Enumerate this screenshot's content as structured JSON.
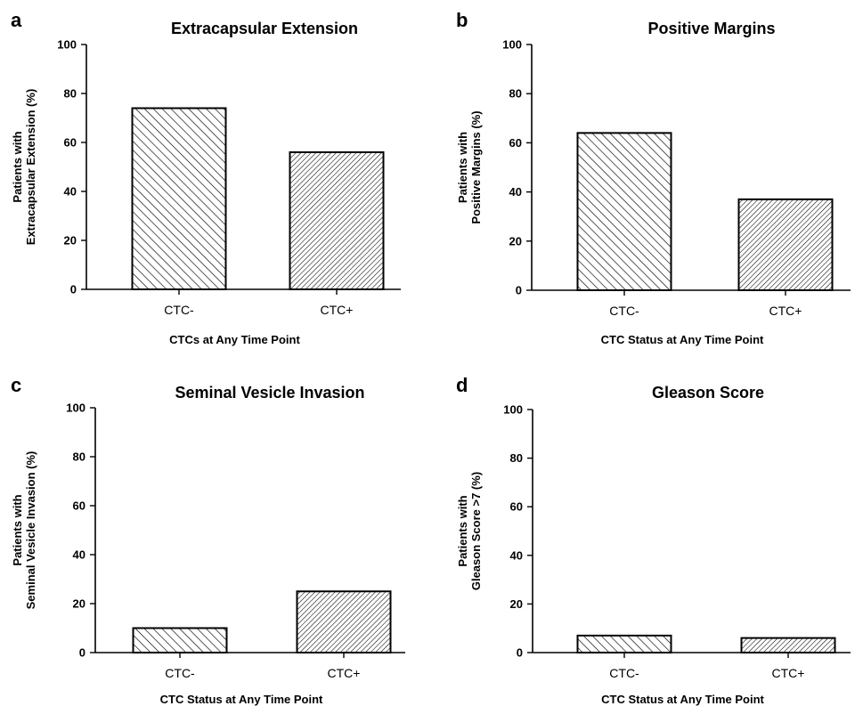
{
  "chart_data": [
    {
      "type": "bar",
      "panel": "a",
      "title": "Extracapsular Extension",
      "categories": [
        "CTC-",
        "CTC+"
      ],
      "values": [
        74,
        56
      ],
      "patterns": [
        "hatch-wide",
        "hatch-dense"
      ],
      "xlabel": "CTCs at Any Time Point",
      "ylabel": [
        "Patients with",
        "Extracapsular Extension (%)"
      ],
      "ylim": [
        0,
        100
      ],
      "yticks": [
        0,
        20,
        40,
        60,
        80,
        100
      ],
      "grid": false
    },
    {
      "type": "bar",
      "panel": "b",
      "title": "Positive Margins",
      "categories": [
        "CTC-",
        "CTC+"
      ],
      "values": [
        64,
        37
      ],
      "patterns": [
        "hatch-wide",
        "hatch-dense"
      ],
      "xlabel": "CTC Status at Any Time Point",
      "ylabel": [
        "Patients with",
        "Positive Margins (%)"
      ],
      "ylim": [
        0,
        100
      ],
      "yticks": [
        0,
        20,
        40,
        60,
        80,
        100
      ],
      "grid": false
    },
    {
      "type": "bar",
      "panel": "c",
      "title": "Seminal Vesicle Invasion",
      "categories": [
        "CTC-",
        "CTC+"
      ],
      "values": [
        10,
        25
      ],
      "patterns": [
        "hatch-wide",
        "hatch-dense"
      ],
      "xlabel": "CTC Status at Any Time Point",
      "ylabel": [
        "Patients with",
        "Seminal Vesicle Invasion (%)"
      ],
      "ylim": [
        0,
        100
      ],
      "yticks": [
        0,
        20,
        40,
        60,
        80,
        100
      ],
      "grid": false
    },
    {
      "type": "bar",
      "panel": "d",
      "title": "Gleason Score",
      "categories": [
        "CTC-",
        "CTC+"
      ],
      "values": [
        7,
        6
      ],
      "patterns": [
        "hatch-wide",
        "hatch-dense"
      ],
      "xlabel": "CTC Status at Any Time Point",
      "ylabel": [
        "Patients with",
        "Gleason Score >7 (%)"
      ],
      "ylim": [
        0,
        100
      ],
      "yticks": [
        0,
        20,
        40,
        60,
        80,
        100
      ],
      "grid": false
    }
  ],
  "colors": {
    "axis": "#000000",
    "bar_fill": "#ffffff",
    "hatch": "#000000"
  }
}
